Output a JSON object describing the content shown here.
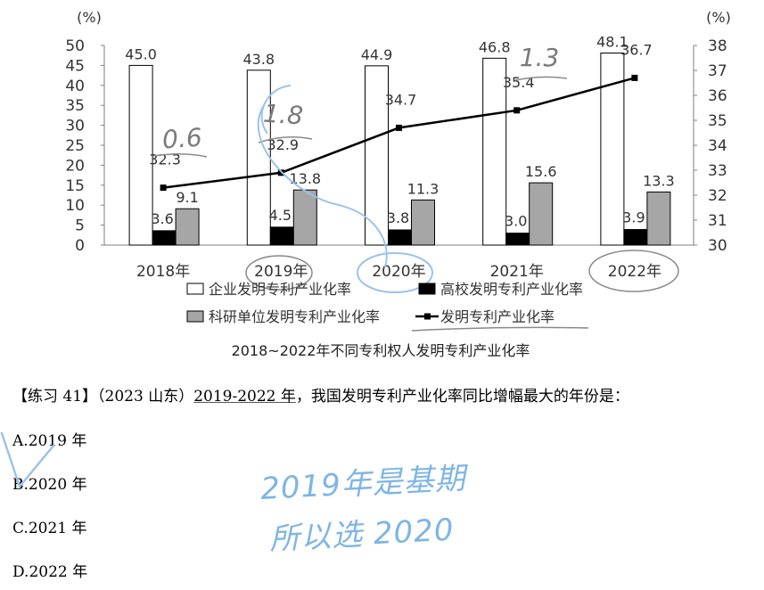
{
  "chart_data": {
    "type": "bar",
    "title": "2018~2022年不同专利权人发明专利产业化率",
    "categories": [
      "2018年",
      "2019年",
      "2020年",
      "2021年",
      "2022年"
    ],
    "left_axis": {
      "unit": "(%)",
      "range": [
        0,
        50
      ],
      "ticks": [
        "0",
        "5",
        "10",
        "15",
        "20",
        "25",
        "30",
        "35",
        "40",
        "45",
        "50"
      ]
    },
    "right_axis": {
      "unit": "(%)",
      "range": [
        30,
        38
      ],
      "ticks": [
        "30",
        "31",
        "32",
        "33",
        "34",
        "35",
        "36",
        "37",
        "38"
      ]
    },
    "series": [
      {
        "name": "企业发明专利产业化率",
        "kind": "bar",
        "axis": "left",
        "color": "#ffffff",
        "values": [
          45.0,
          43.8,
          44.9,
          46.8,
          48.1
        ],
        "labels": [
          "45.0",
          "43.8",
          "44.9",
          "46.8",
          "48.1"
        ]
      },
      {
        "name": "高校发明专利产业化率",
        "kind": "bar",
        "axis": "left",
        "color": "#000000",
        "values": [
          3.6,
          4.5,
          3.8,
          3.0,
          3.9
        ],
        "labels": [
          "3.6",
          "4.5",
          "3.8",
          "3.0",
          "3.9"
        ]
      },
      {
        "name": "科研单位发明专利产业化率",
        "kind": "bar",
        "axis": "left",
        "color": "#a6a6a6",
        "values": [
          9.1,
          13.8,
          11.3,
          15.6,
          13.3
        ],
        "labels": [
          "9.1",
          "13.8",
          "11.3",
          "15.6",
          "13.3"
        ]
      },
      {
        "name": "发明专利产业化率",
        "kind": "line",
        "axis": "right",
        "color": "#000000",
        "values": [
          32.3,
          32.9,
          34.7,
          35.4,
          36.7
        ],
        "labels": [
          "32.3",
          "32.9",
          "34.7",
          "35.4",
          "36.7"
        ]
      }
    ],
    "legend_placement": "bottom",
    "grid": false
  },
  "annotations": {
    "diffs": [
      "0.6",
      "1.8",
      "1.3"
    ]
  },
  "question": {
    "prefix": "【练习 41】（2023 山东）",
    "range": "2019-2022 年",
    "rest": "，我国发明专利产业化率同比增幅最大的年份是："
  },
  "options": [
    {
      "letter": "A.",
      "text": "2019 年"
    },
    {
      "letter": "B.",
      "text": "2020 年"
    },
    {
      "letter": "C.",
      "text": "2021 年"
    },
    {
      "letter": "D.",
      "text": "2022 年"
    }
  ],
  "handwriting": {
    "line1": "2019年是基期",
    "line2": "所以选 2020"
  }
}
